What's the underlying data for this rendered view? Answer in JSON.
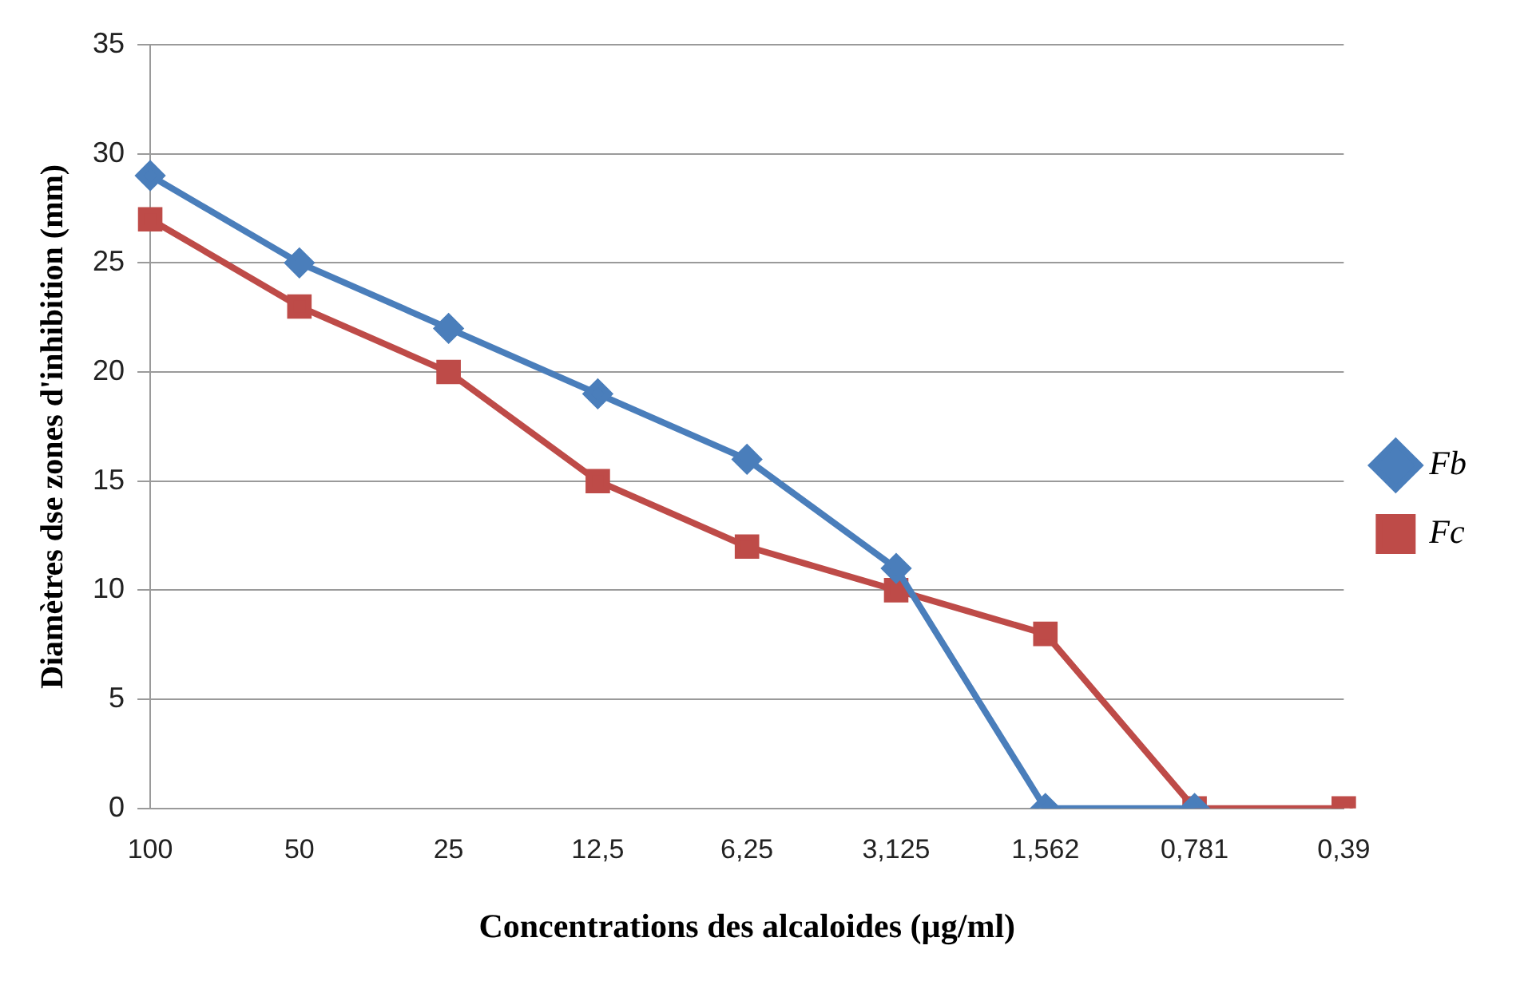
{
  "chart_data": {
    "type": "line",
    "xlabel": "Concentrations des alcaloides (µg/ml)",
    "ylabel": "Diamètres dse zones d'inhibition (mm)",
    "categories": [
      "100",
      "50",
      "25",
      "12,5",
      "6,25",
      "3,125",
      "1,562",
      "0,781",
      "0,39"
    ],
    "series": [
      {
        "name": "Fb",
        "color": "#4a7ebb",
        "marker": "diamond",
        "values": [
          29,
          25,
          22,
          19,
          16,
          11,
          0,
          0,
          null
        ]
      },
      {
        "name": "Fc",
        "color": "#be4b48",
        "marker": "square",
        "values": [
          27,
          23,
          20,
          15,
          12,
          10,
          8,
          0,
          0
        ]
      }
    ],
    "ylim": [
      0,
      35
    ],
    "yticks": [
      0,
      5,
      10,
      15,
      20,
      25,
      30,
      35
    ],
    "grid": "y",
    "legend": "right",
    "line_style": "solid"
  }
}
